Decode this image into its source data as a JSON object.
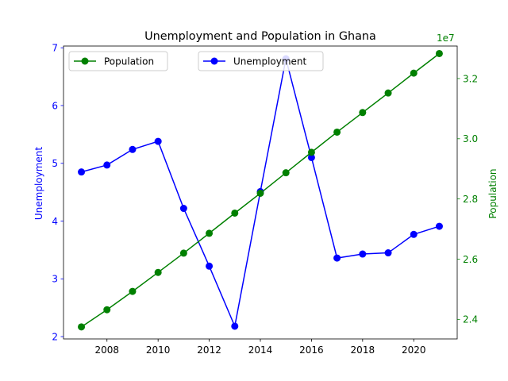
{
  "chart_data": {
    "type": "line",
    "title": "Unemployment and Population in Ghana",
    "x": [
      2007,
      2008,
      2009,
      2010,
      2011,
      2012,
      2013,
      2014,
      2015,
      2016,
      2017,
      2018,
      2019,
      2020,
      2021
    ],
    "xlim": [
      2006.3,
      2021.7
    ],
    "xticks": [
      "2008",
      "2010",
      "2012",
      "2014",
      "2016",
      "2018",
      "2020"
    ],
    "axes": {
      "left": {
        "label": "Unemployment",
        "color": "#0000ff",
        "ylim": [
          1.96,
          7.03
        ],
        "ticks": [
          "2",
          "3",
          "4",
          "5",
          "6",
          "7"
        ]
      },
      "right": {
        "label": "Population",
        "color": "#008000",
        "ylim": [
          23350000,
          33080000
        ],
        "ticks": [
          "2.4",
          "2.6",
          "2.8",
          "3.0",
          "3.2"
        ],
        "offset_text": "1e7"
      }
    },
    "series": [
      {
        "name": "Unemployment",
        "axis": "left",
        "color": "#0000ff",
        "values": [
          4.85,
          4.97,
          5.24,
          5.38,
          4.22,
          3.22,
          2.18,
          4.51,
          6.81,
          5.1,
          3.36,
          3.43,
          3.45,
          3.77,
          3.91
        ]
      },
      {
        "name": "Population",
        "axis": "right",
        "color": "#008000",
        "values": [
          23750000,
          24320000,
          24930000,
          25560000,
          26200000,
          26860000,
          27530000,
          28190000,
          28870000,
          29550000,
          30220000,
          30870000,
          31520000,
          32180000,
          32830000
        ]
      }
    ],
    "legends": [
      {
        "position": "upper-left",
        "entries": [
          "Population"
        ]
      },
      {
        "position": "upper-center",
        "entries": [
          "Unemployment"
        ]
      }
    ]
  }
}
